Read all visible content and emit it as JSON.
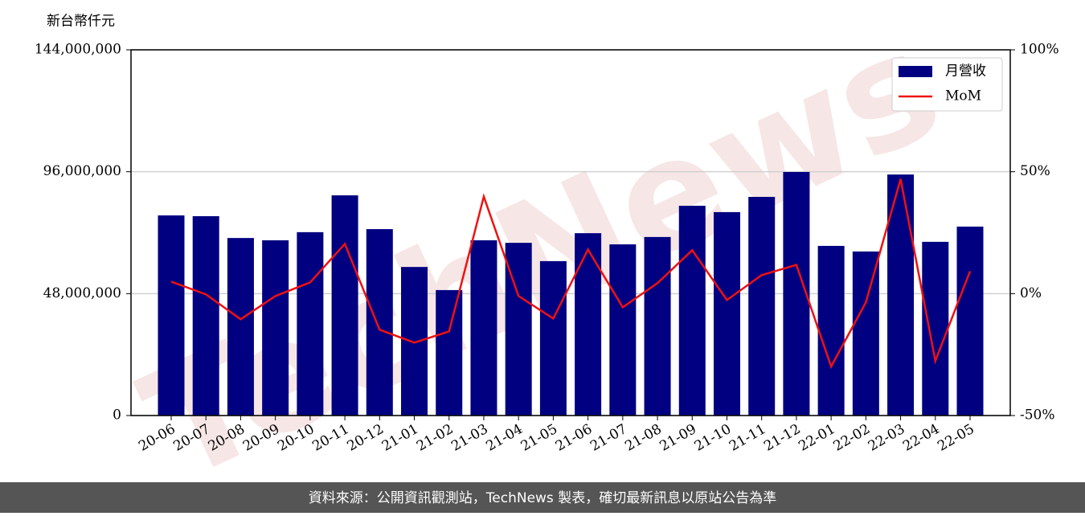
{
  "chart_data": {
    "type": "bar_line",
    "unit_label": "新台幣仟元",
    "watermark": "TechNews",
    "categories": [
      "20-06",
      "20-07",
      "20-08",
      "20-09",
      "20-10",
      "20-11",
      "20-12",
      "21-01",
      "21-02",
      "21-03",
      "21-04",
      "21-05",
      "21-06",
      "21-07",
      "21-08",
      "21-09",
      "21-10",
      "21-11",
      "21-12",
      "22-01",
      "22-02",
      "22-03",
      "22-04",
      "22-05"
    ],
    "series": [
      {
        "name": "月營收",
        "type": "bar",
        "color": "#000080",
        "values": [
          78800000,
          78500000,
          69900000,
          69000000,
          72200000,
          86700000,
          73400000,
          58500000,
          49400000,
          69000000,
          68000000,
          60800000,
          71800000,
          67400000,
          70300000,
          82600000,
          80100000,
          86100000,
          95900000,
          66800000,
          64600000,
          94900000,
          68400000,
          74400000
        ]
      },
      {
        "name": "MoM",
        "type": "line",
        "axis": "y2",
        "color": "#ee1111",
        "values": [
          4.9,
          -0.3,
          -10.5,
          -1,
          4.6,
          20.4,
          -14.8,
          -20.1,
          -15.5,
          39.8,
          -1,
          -10.2,
          18.1,
          -5.6,
          4.3,
          17.8,
          -2.6,
          7.6,
          11.8,
          -29.9,
          -3.6,
          47.0,
          -27.6,
          9.2
        ]
      }
    ],
    "ylim": [
      0,
      144000000
    ],
    "yticks": [
      0,
      {
        "value": 48000000,
        "label": "48,000,000"
      },
      {
        "value": 96000000,
        "label": "96,000,000"
      },
      {
        "value": 144000000,
        "label": "144,000,000"
      }
    ],
    "y2lim": [
      -50,
      100
    ],
    "y2ticks": [
      {
        "value": -50,
        "label": "-50%"
      },
      {
        "value": 0,
        "label": "0%"
      },
      {
        "value": 50,
        "label": "50%"
      },
      {
        "value": 100,
        "label": "100%"
      }
    ],
    "grid": true,
    "legend": "upper right",
    "footer": "資料來源：公開資訊觀測站，TechNews 製表，確切最新訊息以原站公告為準"
  }
}
